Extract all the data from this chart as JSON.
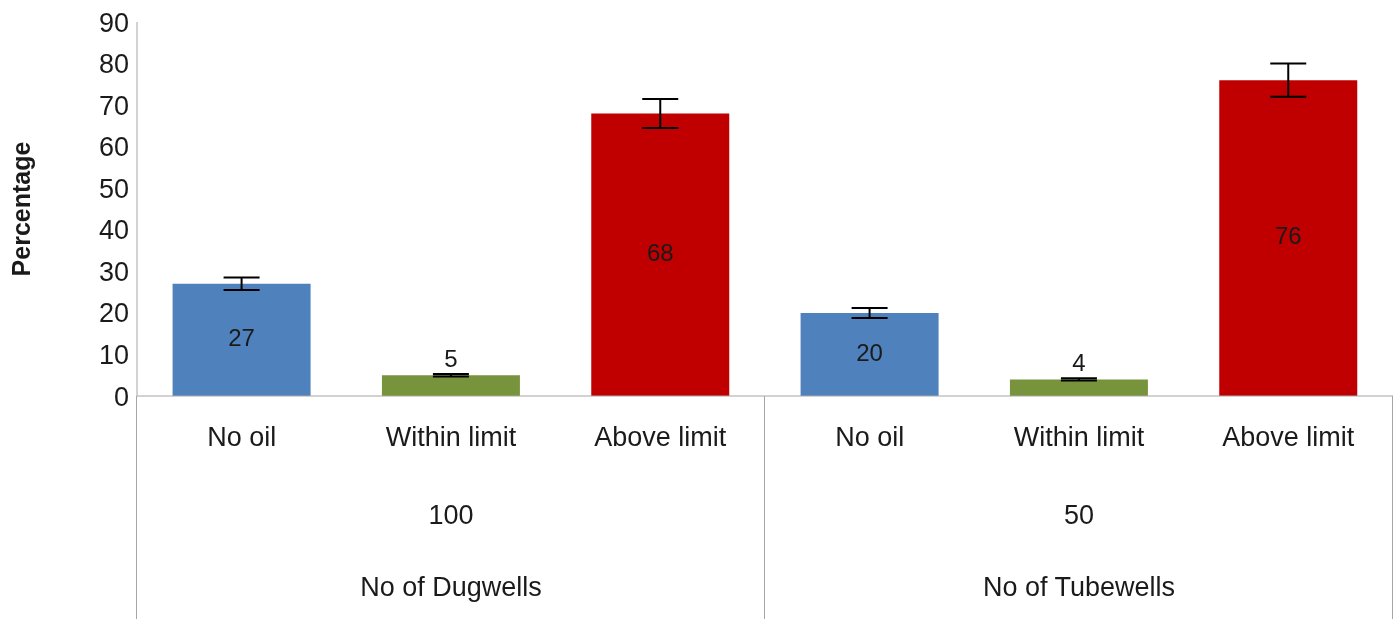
{
  "chart_data": {
    "type": "bar",
    "ylabel": "Percentage",
    "categories": [
      "No oil",
      "Within limit",
      "Above limit",
      "No oil",
      "Within limit",
      "Above limit"
    ],
    "values": [
      27,
      5,
      68,
      20,
      4,
      76
    ],
    "colors": [
      "#4f81bd",
      "#77933c",
      "#c00000",
      "#4f81bd",
      "#77933c",
      "#c00000"
    ],
    "errors": [
      1.5,
      0.3,
      3.5,
      1.2,
      0.3,
      4
    ],
    "ylim": [
      0,
      90
    ],
    "yticks": [
      0,
      10,
      20,
      30,
      40,
      50,
      60,
      70,
      80,
      90
    ],
    "grid": false,
    "legend": false,
    "data_labels": true,
    "annotations": [
      "100",
      "No of Dugwells",
      "50",
      "No of Tubewells"
    ]
  }
}
